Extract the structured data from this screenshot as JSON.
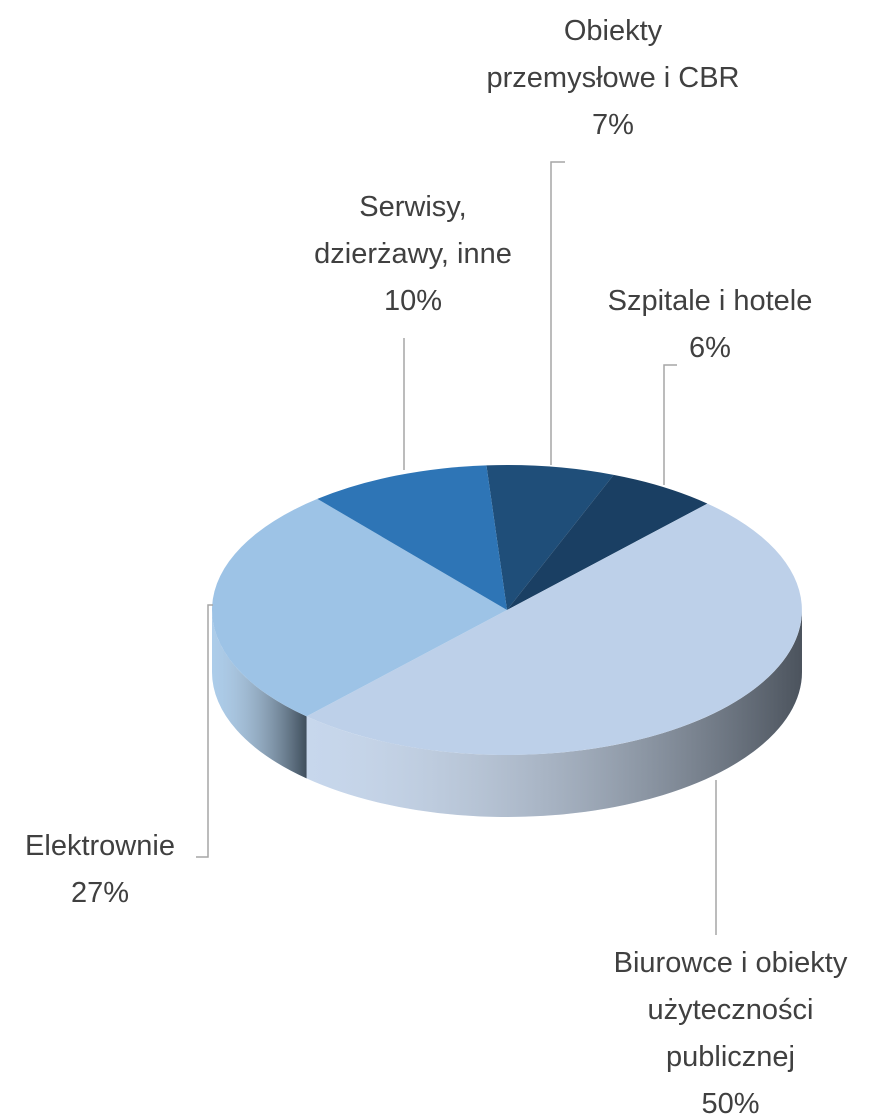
{
  "chart_data": {
    "type": "pie3d",
    "categories": [
      "Obiekty przemysłowe i CBR",
      "Szpitale i hotele",
      "Biurowce i obiekty użyteczności publicznej",
      "Elektrownie",
      "Serwisy, dzierżawy, inne"
    ],
    "values": [
      7,
      6,
      50,
      27,
      10
    ],
    "value_labels": [
      "7%",
      "6%",
      "50%",
      "27%",
      "10%"
    ],
    "colors": [
      "#1f4e79",
      "#1a3f63",
      "#bdd0e9",
      "#9dc3e6",
      "#2e75b6"
    ]
  }
}
